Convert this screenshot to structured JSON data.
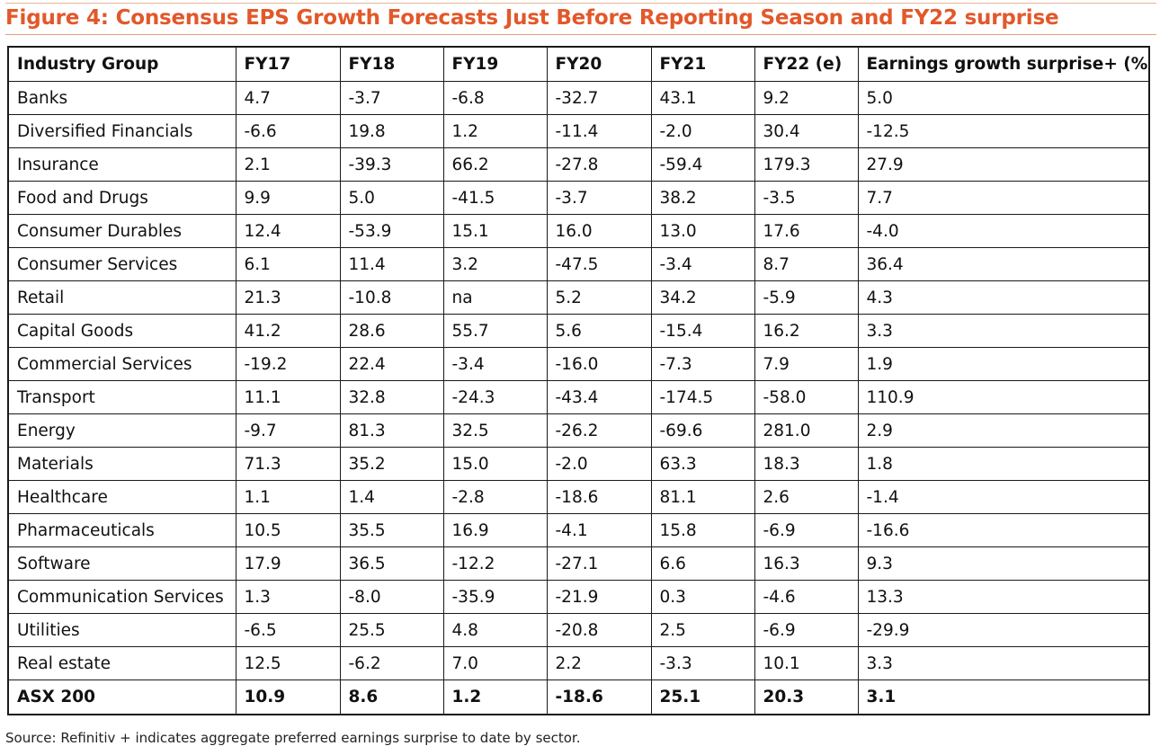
{
  "title": "Figure 4: Consensus EPS Growth Forecasts Just Before Reporting Season and FY22 surprise",
  "table": {
    "headers": [
      "Industry Group",
      "FY17",
      "FY18",
      "FY19",
      "FY20",
      "FY21",
      "FY22 (e)",
      "Earnings growth surprise+ (%)"
    ],
    "rows": [
      [
        "Banks",
        "4.7",
        "-3.7",
        "-6.8",
        "-32.7",
        "43.1",
        "9.2",
        "5.0"
      ],
      [
        "Diversified Financials",
        "-6.6",
        "19.8",
        "1.2",
        "-11.4",
        "-2.0",
        "30.4",
        "-12.5"
      ],
      [
        "Insurance",
        "2.1",
        "-39.3",
        "66.2",
        "-27.8",
        "-59.4",
        "179.3",
        "27.9"
      ],
      [
        "Food and Drugs",
        "9.9",
        "5.0",
        "-41.5",
        "-3.7",
        "38.2",
        "-3.5",
        "7.7"
      ],
      [
        "Consumer Durables",
        "12.4",
        "-53.9",
        "15.1",
        "16.0",
        "13.0",
        "17.6",
        "-4.0"
      ],
      [
        "Consumer Services",
        "6.1",
        "11.4",
        "3.2",
        "-47.5",
        "-3.4",
        "8.7",
        "36.4"
      ],
      [
        "Retail",
        "21.3",
        "-10.8",
        "na",
        "5.2",
        "34.2",
        "-5.9",
        "4.3"
      ],
      [
        "Capital Goods",
        "41.2",
        "28.6",
        "55.7",
        "5.6",
        "-15.4",
        "16.2",
        "3.3"
      ],
      [
        "Commercial Services",
        "-19.2",
        "22.4",
        "-3.4",
        "-16.0",
        "-7.3",
        "7.9",
        "1.9"
      ],
      [
        "Transport",
        "11.1",
        "32.8",
        "-24.3",
        "-43.4",
        "-174.5",
        "-58.0",
        "110.9"
      ],
      [
        "Energy",
        "-9.7",
        "81.3",
        "32.5",
        "-26.2",
        "-69.6",
        "281.0",
        "2.9"
      ],
      [
        "Materials",
        "71.3",
        "35.2",
        "15.0",
        "-2.0",
        "63.3",
        "18.3",
        "1.8"
      ],
      [
        "Healthcare",
        "1.1",
        "1.4",
        "-2.8",
        "-18.6",
        "81.1",
        "2.6",
        "-1.4"
      ],
      [
        "Pharmaceuticals",
        "10.5",
        "35.5",
        "16.9",
        "-4.1",
        "15.8",
        "-6.9",
        "-16.6"
      ],
      [
        "Software",
        "17.9",
        "36.5",
        "-12.2",
        "-27.1",
        "6.6",
        "16.3",
        "9.3"
      ],
      [
        "Communication Services",
        "1.3",
        "-8.0",
        "-35.9",
        "-21.9",
        "0.3",
        "-4.6",
        "13.3"
      ],
      [
        "Utilities",
        "-6.5",
        "25.5",
        "4.8",
        "-20.8",
        "2.5",
        "-6.9",
        "-29.9"
      ],
      [
        "Real estate",
        "12.5",
        "-6.2",
        "7.0",
        "2.2",
        "-3.3",
        "10.1",
        "3.3"
      ]
    ],
    "total_row": [
      "ASX 200",
      "10.9",
      "8.6",
      "1.2",
      "-18.6",
      "25.1",
      "20.3",
      "3.1"
    ]
  },
  "source": "Source: Refinitiv + indicates aggregate preferred earnings surprise to date by sector.",
  "colors": {
    "title": "#e2582a",
    "rule": "#e3a07a",
    "border": "#1a1a1a"
  }
}
